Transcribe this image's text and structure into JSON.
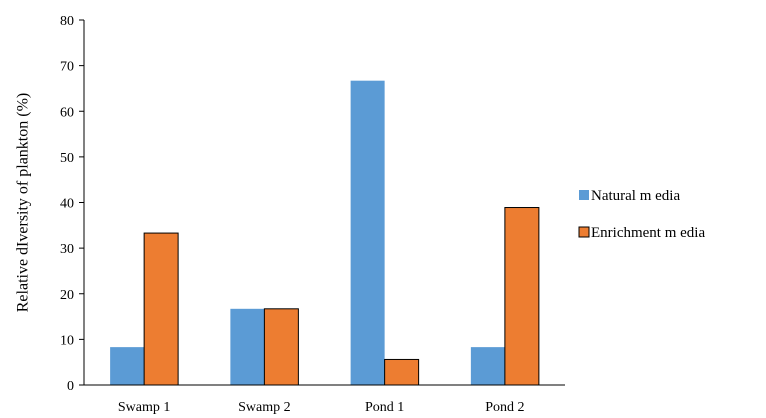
{
  "chart_data": {
    "type": "bar",
    "categories": [
      "Swamp 1",
      "Swamp 2",
      "Pond 1",
      "Pond 2"
    ],
    "series": [
      {
        "name": "Natural m edia",
        "color": "#5b9bd5",
        "values": [
          8.3,
          16.7,
          66.7,
          8.3
        ]
      },
      {
        "name": "Enrichment m edia",
        "color": "#ed7d31",
        "values": [
          33.3,
          16.7,
          5.6,
          38.9
        ]
      }
    ],
    "title": "",
    "xlabel": "",
    "ylabel": "Relative dIversity of plankton (%)",
    "ylim": [
      0,
      80
    ],
    "yticks": [
      0,
      10,
      20,
      30,
      40,
      50,
      60,
      70,
      80
    ],
    "grid": false,
    "legend_position": "right"
  }
}
